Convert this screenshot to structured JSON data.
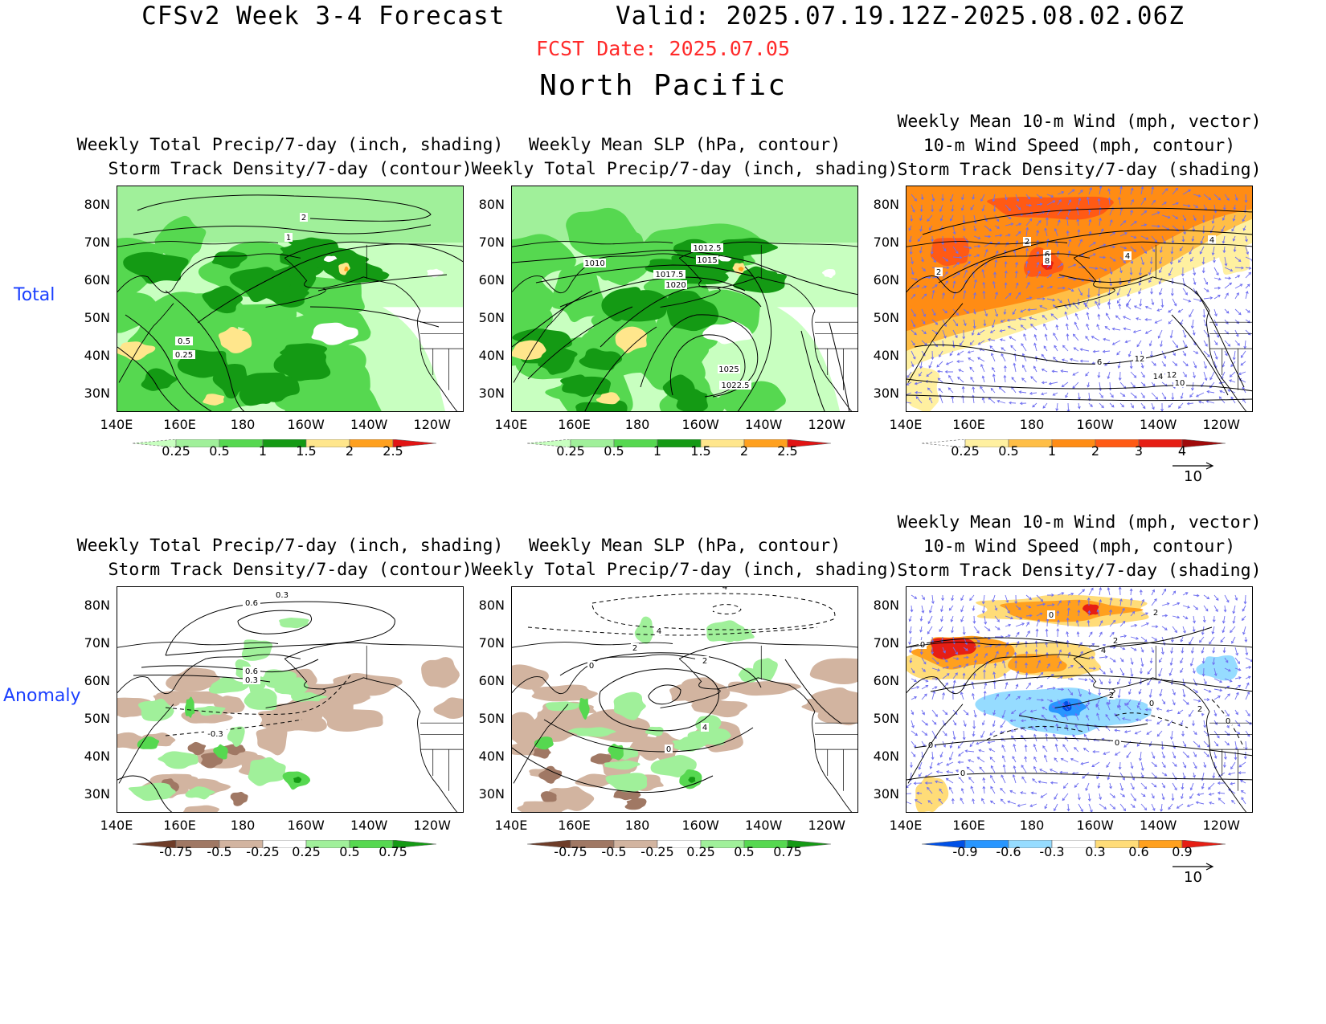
{
  "header": {
    "title": "CFSv2 Week 3-4 Forecast       Valid: 2025.07.19.12Z-2025.08.02.06Z",
    "fcst_date": "FCST Date: 2025.07.05",
    "region": "North Pacific"
  },
  "rows": {
    "total": "Total",
    "anomaly": "Anomaly"
  },
  "axes": {
    "lat_labels": [
      "80N",
      "70N",
      "60N",
      "50N",
      "40N",
      "30N"
    ],
    "lon_labels": [
      "140E",
      "160E",
      "180",
      "160W",
      "140W",
      "120W"
    ]
  },
  "panels": {
    "total_precip": {
      "title_lines": [
        "Weekly Total Precip/7-day (inch, shading)",
        "Storm Track Density/7-day (contour)"
      ],
      "contour_labels": [
        "2",
        "1",
        "0.5",
        "0.25"
      ],
      "colorbar_ticks": [
        "0.25",
        "0.5",
        "1",
        "1.5",
        "2",
        "2.5"
      ]
    },
    "total_slp": {
      "title_lines": [
        "Weekly Mean SLP (hPa, contour)",
        "Weekly Total Precip/7-day (inch, shading)"
      ],
      "contour_labels": [
        "1012.5",
        "1015",
        "1010",
        "1017.5",
        "1020",
        "1025",
        "1022.5"
      ],
      "colorbar_ticks": [
        "0.25",
        "0.5",
        "1",
        "1.5",
        "2",
        "2.5"
      ]
    },
    "total_wind": {
      "title_lines": [
        "Weekly Mean 10-m Wind (mph, vector)",
        "10-m Wind Speed (mph, contour)",
        "Storm Track Density/7-day (shading)"
      ],
      "contour_labels": [
        "2",
        "2",
        "4",
        "6",
        "8",
        "6",
        "12",
        "14",
        "12",
        "10",
        "4"
      ],
      "colorbar_ticks": [
        "0.25",
        "0.5",
        "1",
        "2",
        "3",
        "4"
      ],
      "vector_ref": "10"
    },
    "anom_precip": {
      "title_lines": [
        "Weekly Total Precip/7-day (inch, shading)",
        "Storm Track Density/7-day (contour)"
      ],
      "contour_labels": [
        "0.3",
        "0.6",
        "0.6",
        "0.3",
        "-0.3"
      ],
      "colorbar_ticks": [
        "-0.75",
        "-0.5",
        "-0.25",
        "0.25",
        "0.5",
        "0.75"
      ]
    },
    "anom_slp": {
      "title_lines": [
        "Weekly Mean SLP (hPa, contour)",
        "Weekly Total Precip/7-day (inch, shading)"
      ],
      "contour_labels": [
        "4",
        "4",
        "2",
        "0",
        "2",
        "4",
        "0"
      ],
      "colorbar_ticks": [
        "-0.75",
        "-0.5",
        "-0.25",
        "0.25",
        "0.5",
        "0.75"
      ]
    },
    "anom_wind": {
      "title_lines": [
        "Weekly Mean 10-m Wind (mph, vector)",
        "10-m Wind Speed (mph, contour)",
        "Storm Track Density/7-day (shading)"
      ],
      "contour_labels": [
        "0",
        "0",
        "2",
        "2",
        "4",
        "2",
        "0",
        "0",
        "0",
        "0",
        "2",
        "0"
      ],
      "colorbar_ticks": [
        "-0.9",
        "-0.6",
        "-0.3",
        "0.3",
        "0.6",
        "0.9"
      ],
      "vector_ref": "10"
    }
  },
  "colors": {
    "precip_total": [
      "#c8ffc0",
      "#a0f09a",
      "#56d850",
      "#149a14",
      "#ffe68c",
      "#ffa01e",
      "#e11414"
    ],
    "precip_anom": [
      "#6e3c28",
      "#a07864",
      "#d2b4a0",
      "#ffffff",
      "#a0f09a",
      "#56d850",
      "#149a14"
    ],
    "storm_total": [
      "#ffffff",
      "#fff0a0",
      "#ffbe46",
      "#ff8c14",
      "#ff5a14",
      "#e61e14",
      "#a00a0a"
    ],
    "storm_anom": [
      "#0050e6",
      "#2896ff",
      "#96dcff",
      "#ffffff",
      "#ffdc78",
      "#ffa01e",
      "#e61e14"
    ],
    "vector": "#6e6ef0",
    "fcst_red": "#ff2a2a",
    "row_label_blue": "#1a3fff"
  }
}
